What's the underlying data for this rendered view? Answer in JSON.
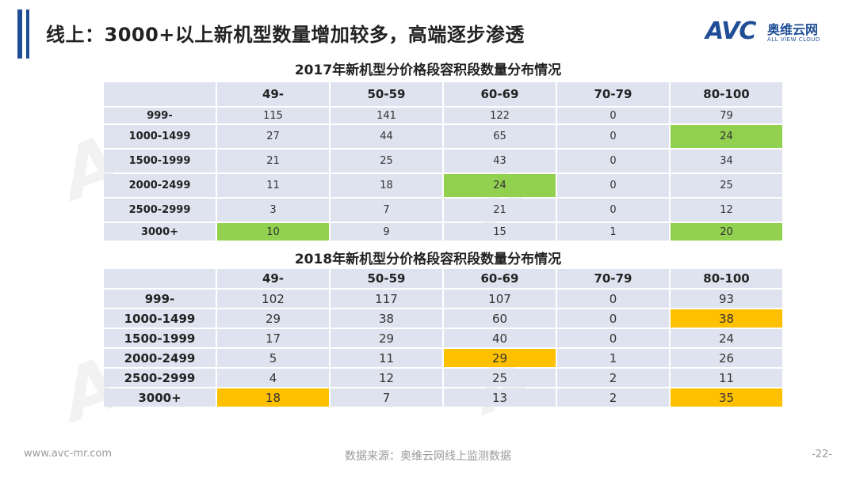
{
  "header": {
    "title": "线上：3000+以上新机型数量增加较多，高端逐步渗透",
    "logo_mark": "AVC",
    "logo_cn": "奥维云网",
    "logo_en": "ALL VIEW CLOUD",
    "accent_color": "#1f4e96"
  },
  "tables": [
    {
      "title": "2017年新机型分价格段容积段数量分布情况",
      "columns": [
        "",
        "49-",
        "50-59",
        "60-69",
        "70-79",
        "80-100"
      ],
      "highlight_color": "#92d050",
      "rows": [
        {
          "label": "999-",
          "values": [
            "115",
            "141",
            "122",
            "0",
            "79"
          ]
        },
        {
          "label": "1000-1499",
          "values": [
            "27",
            "44",
            "65",
            "0",
            "24"
          ]
        },
        {
          "label": "1500-1999",
          "values": [
            "21",
            "25",
            "43",
            "0",
            "34"
          ]
        },
        {
          "label": "2000-2499",
          "values": [
            "11",
            "18",
            "24",
            "0",
            "25"
          ]
        },
        {
          "label": "2500-2999",
          "values": [
            "3",
            "7",
            "21",
            "0",
            "12"
          ]
        },
        {
          "label": "3000+",
          "values": [
            "10",
            "9",
            "15",
            "1",
            "20"
          ]
        }
      ]
    },
    {
      "title": "2018年新机型分价格段容积段数量分布情况",
      "columns": [
        "",
        "49-",
        "50-59",
        "60-69",
        "70-79",
        "80-100"
      ],
      "highlight_color": "#ffc000",
      "rows": [
        {
          "label": "999-",
          "values": [
            "102",
            "117",
            "107",
            "0",
            "93"
          ]
        },
        {
          "label": "1000-1499",
          "values": [
            "29",
            "38",
            "60",
            "0",
            "38"
          ]
        },
        {
          "label": "1500-1999",
          "values": [
            "17",
            "29",
            "40",
            "0",
            "24"
          ]
        },
        {
          "label": "2000-2499",
          "values": [
            "5",
            "11",
            "29",
            "1",
            "26"
          ]
        },
        {
          "label": "2500-2999",
          "values": [
            "4",
            "12",
            "25",
            "2",
            "11"
          ]
        },
        {
          "label": "3000+",
          "values": [
            "18",
            "7",
            "13",
            "2",
            "35"
          ]
        }
      ]
    }
  ],
  "footer": {
    "website": "www.avc-mr.com",
    "source": "数据来源：奥维云网线上监测数据",
    "page": "-22-"
  }
}
